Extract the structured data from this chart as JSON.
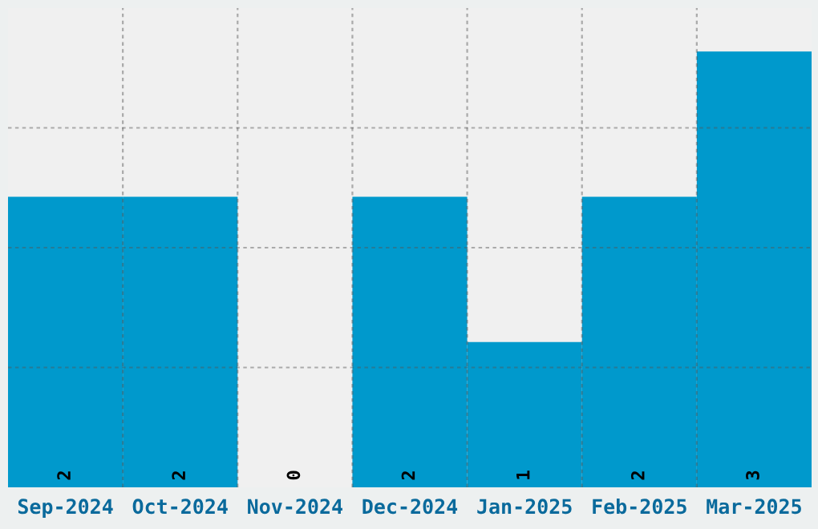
{
  "chart_data": {
    "type": "bar",
    "categories": [
      "Sep-2024",
      "Oct-2024",
      "Nov-2024",
      "Dec-2024",
      "Jan-2025",
      "Feb-2025",
      "Mar-2025"
    ],
    "values": [
      2,
      2,
      0,
      2,
      1,
      2,
      3
    ],
    "color": "#0099cc",
    "ylim": [
      0,
      3.3
    ],
    "yticks": [
      {
        "value": 0.825,
        "label": null
      },
      {
        "value": 1.65,
        "label": null
      },
      {
        "value": 2.475,
        "label": null
      }
    ],
    "tick_labels": "x",
    "grid": true,
    "data_labels": true
  }
}
